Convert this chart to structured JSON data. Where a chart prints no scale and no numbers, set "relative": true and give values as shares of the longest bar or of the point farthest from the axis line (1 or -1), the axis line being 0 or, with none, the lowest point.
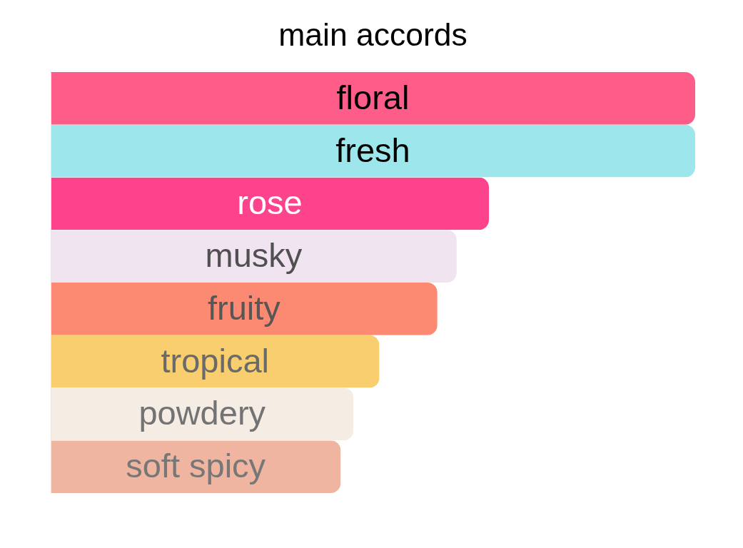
{
  "chart_data": {
    "type": "bar",
    "title": "main accords",
    "orientation": "horizontal",
    "relative": true,
    "categories": [
      "floral",
      "fresh",
      "rose",
      "musky",
      "fruity",
      "tropical",
      "powdery",
      "soft spicy"
    ],
    "values": [
      1,
      1,
      0.68,
      0.63,
      0.6,
      0.51,
      0.47,
      0.45
    ],
    "colors": [
      "#fd5d88",
      "#9de6ec",
      "#fe438d",
      "#efe4f0",
      "#fc8972",
      "#f8ce6e",
      "#f5ece4",
      "#efb5a0"
    ]
  }
}
